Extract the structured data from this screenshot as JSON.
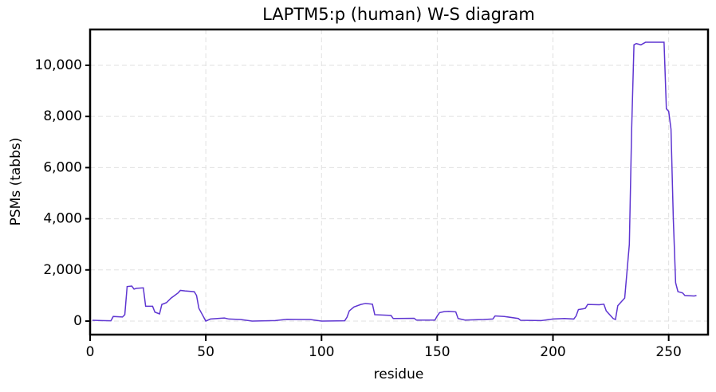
{
  "chart_data": {
    "type": "line",
    "title": "LAPTM5:p (human) W-S diagram",
    "x_label": "residue",
    "y_label": "PSMs (tabbs)",
    "color": "#5e35d1",
    "grid": true,
    "xlim": [
      0,
      267
    ],
    "ylim": [
      -530,
      11400
    ],
    "xticks": [
      0,
      50,
      100,
      150,
      200,
      250
    ],
    "yticks": [
      0,
      {
        "value": 2000,
        "label": "2,000"
      },
      {
        "value": 4000,
        "label": "4,000"
      },
      {
        "value": 6000,
        "label": "6,000"
      },
      {
        "value": 8000,
        "label": "8,000"
      },
      {
        "value": 10000,
        "label": "10,000"
      }
    ],
    "x": [
      1,
      9,
      10,
      14,
      15,
      16,
      18,
      19,
      20,
      23,
      24,
      27,
      28,
      30,
      31,
      33,
      35,
      38,
      39,
      41,
      45,
      46,
      47,
      50,
      52,
      58,
      60,
      65,
      70,
      80,
      85,
      95,
      100,
      110,
      111,
      112,
      114,
      117,
      119,
      122,
      123,
      130,
      131,
      140,
      141,
      149,
      150,
      151,
      153,
      155,
      158,
      159,
      162,
      170,
      174,
      175,
      179,
      185,
      186,
      195,
      200,
      205,
      209,
      210,
      211,
      213,
      214,
      215,
      220,
      222,
      223,
      226,
      227,
      228,
      230,
      231,
      233,
      234,
      235,
      236,
      238,
      240,
      248,
      249,
      250,
      251,
      252,
      253,
      254,
      256,
      257,
      261,
      262
    ],
    "values": [
      30,
      10,
      180,
      160,
      250,
      1350,
      1370,
      1250,
      1280,
      1300,
      580,
      580,
      350,
      280,
      650,
      720,
      900,
      1100,
      1200,
      1180,
      1150,
      1000,
      500,
      0,
      80,
      120,
      80,
      60,
      0,
      20,
      70,
      60,
      0,
      10,
      150,
      400,
      550,
      650,
      690,
      660,
      250,
      220,
      100,
      110,
      40,
      40,
      200,
      330,
      370,
      380,
      360,
      100,
      40,
      60,
      80,
      200,
      180,
      100,
      30,
      20,
      80,
      100,
      80,
      200,
      450,
      480,
      500,
      650,
      640,
      660,
      400,
      100,
      60,
      600,
      800,
      900,
      3000,
      7500,
      10800,
      10850,
      10800,
      10900,
      10900,
      8300,
      8200,
      7500,
      4000,
      1500,
      1150,
      1100,
      1000,
      980,
      1000
    ]
  }
}
